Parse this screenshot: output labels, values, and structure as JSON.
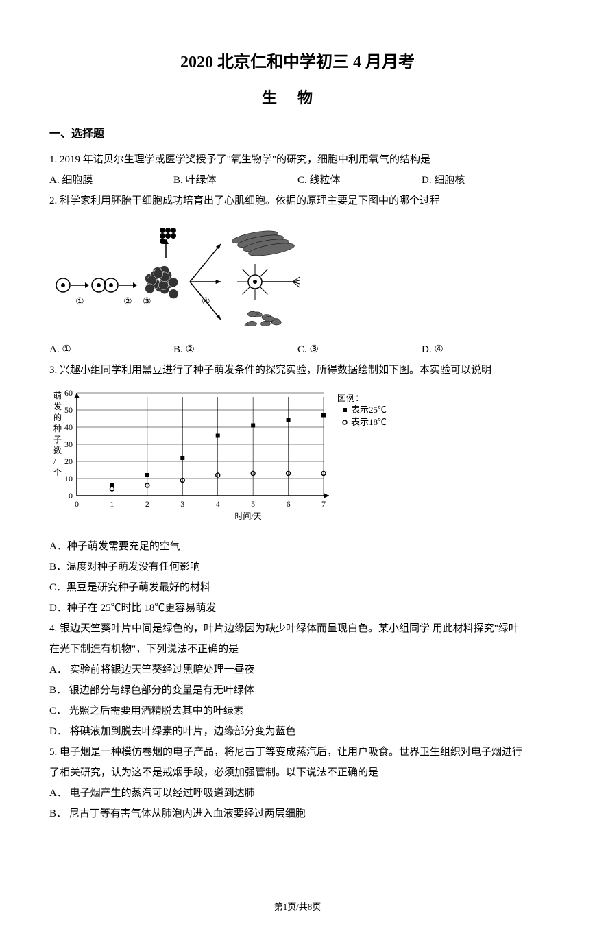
{
  "header": {
    "title_main": "2020 北京仁和中学初三 4 月月考",
    "title_sub": "生物"
  },
  "section1": {
    "label": "一、选择题"
  },
  "q1": {
    "text": "1. 2019 年诺贝尔生理学或医学奖授予了\"氧生物学\"的研究，细胞中利用氧气的结构是",
    "A": "A. 细胞膜",
    "B": "B. 叶绿体",
    "C": "C. 线粒体",
    "D": "D. 细胞核"
  },
  "q2": {
    "text": "2. 科学家利用胚胎干细胞成功培育出了心肌细胞。依据的原理主要是下图中的哪个过程",
    "A": "A.  ①",
    "B": "B.  ②",
    "C": "C.  ③",
    "D": "D.  ④",
    "figure": {
      "labels": [
        "①",
        "②",
        "③",
        "④"
      ],
      "stroke": "#000000",
      "fill_dark": "#333333",
      "fill_mid": "#666666",
      "fill_light": "#999999"
    }
  },
  "q3": {
    "text": "3. 兴趣小组同学利用黑豆进行了种子萌发条件的探究实验，所得数据绘制如下图。本实验可以说明",
    "A": "A．种子萌发需要充足的空气",
    "B": "B．温度对种子萌发没有任何影响",
    "C": "C．黑豆是研究种子萌发最好的材料",
    "D": "D．种子在 25℃时比 18℃更容易萌发",
    "chart": {
      "type": "scatter",
      "xlabel": "时间/天",
      "ylabel_chars": [
        "萌",
        "发",
        "的",
        "种",
        "子",
        "数",
        "/",
        "个"
      ],
      "xlim": [
        0,
        7
      ],
      "ylim": [
        0,
        60
      ],
      "xticks": [
        0,
        1,
        2,
        3,
        4,
        5,
        6,
        7
      ],
      "yticks": [
        0,
        10,
        20,
        30,
        40,
        50,
        60
      ],
      "series": [
        {
          "name": "表示25℃",
          "marker": "square",
          "color": "#000000",
          "points": [
            [
              1,
              6
            ],
            [
              2,
              12
            ],
            [
              3,
              22
            ],
            [
              4,
              35
            ],
            [
              5,
              41
            ],
            [
              6,
              44
            ],
            [
              7,
              47
            ]
          ]
        },
        {
          "name": "表示18℃",
          "marker": "circle",
          "color": "#000000",
          "points": [
            [
              1,
              4
            ],
            [
              2,
              6
            ],
            [
              3,
              9
            ],
            [
              4,
              12
            ],
            [
              5,
              13
            ],
            [
              6,
              13
            ],
            [
              7,
              13
            ]
          ]
        }
      ],
      "legend_title": "图例：",
      "background_color": "#ffffff",
      "axis_color": "#000000",
      "grid_color": "#000000",
      "font_size_axis": 12,
      "font_size_legend": 13
    }
  },
  "q4": {
    "text1": "4. 银边天竺葵叶片中间是绿色的，叶片边缘因为缺少叶绿体而呈现白色。某小组同学 用此材料探究\"绿叶",
    "text2": "在光下制造有机物\"，下列说法不正确的是",
    "A": "A． 实验前将银边天竺葵经过黑暗处理一昼夜",
    "B": "B． 银边部分与绿色部分的变量是有无叶绿体",
    "C": "C． 光照之后需要用酒精脱去其中的叶绿素",
    "D": "D． 将碘液加到脱去叶绿素的叶片，边缘部分变为蓝色"
  },
  "q5": {
    "text1": "5. 电子烟是一种模仿卷烟的电子产品，将尼古丁等变成蒸汽后，让用户吸食。世界卫生组织对电子烟进行",
    "text2": "了相关研究，认为这不是戒烟手段，必须加强管制。以下说法不正确的是",
    "A": "A． 电子烟产生的蒸汽可以经过呼吸道到达肺",
    "B": "B． 尼古丁等有害气体从肺泡内进入血液要经过两层细胞"
  },
  "footer": {
    "text": "第1页/共8页"
  }
}
